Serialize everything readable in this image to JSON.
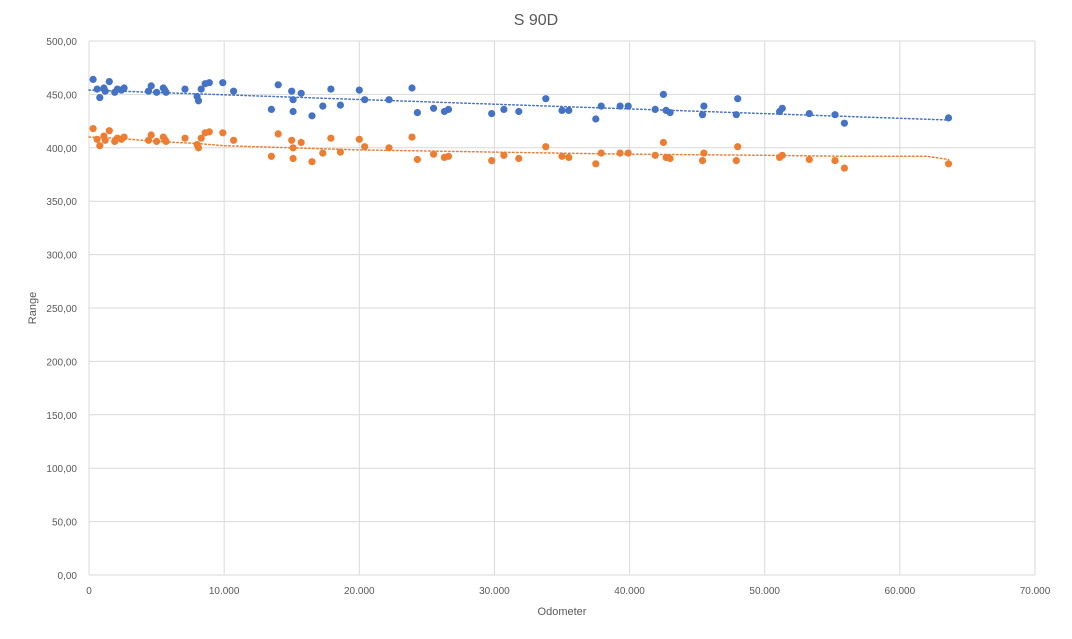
{
  "chart_data": {
    "type": "scatter",
    "title": "S 90D",
    "xlabel": "Odometer",
    "ylabel": "Range",
    "xlim": [
      0,
      70000
    ],
    "ylim": [
      0,
      500
    ],
    "x_ticks": [
      0,
      10000,
      20000,
      30000,
      40000,
      50000,
      60000,
      70000
    ],
    "x_tick_labels": [
      "0",
      "10.000",
      "20.000",
      "30.000",
      "40.000",
      "50.000",
      "60.000",
      "70.000"
    ],
    "y_ticks": [
      0,
      50,
      100,
      150,
      200,
      250,
      300,
      350,
      400,
      450,
      500
    ],
    "y_tick_labels": [
      "0,00",
      "50,00",
      "100,00",
      "150,00",
      "200,00",
      "250,00",
      "300,00",
      "350,00",
      "400,00",
      "450,00",
      "500,00"
    ],
    "grid": true,
    "legend": false,
    "series": [
      {
        "color": "#4472C4",
        "trendline": {
          "type": "linear",
          "x": [
            0,
            63600
          ],
          "y": [
            454,
            426
          ]
        },
        "points": [
          [
            300,
            464
          ],
          [
            600,
            455
          ],
          [
            800,
            447
          ],
          [
            1100,
            456
          ],
          [
            1200,
            453
          ],
          [
            1500,
            462
          ],
          [
            1900,
            452
          ],
          [
            2100,
            455
          ],
          [
            2400,
            454
          ],
          [
            2600,
            456
          ],
          [
            4400,
            453
          ],
          [
            4600,
            458
          ],
          [
            5000,
            452
          ],
          [
            5500,
            456
          ],
          [
            5600,
            454
          ],
          [
            5700,
            452
          ],
          [
            7100,
            455
          ],
          [
            8000,
            448
          ],
          [
            8100,
            444
          ],
          [
            8300,
            455
          ],
          [
            8600,
            460
          ],
          [
            8900,
            461
          ],
          [
            9900,
            461
          ],
          [
            10700,
            453
          ],
          [
            13500,
            436
          ],
          [
            14000,
            459
          ],
          [
            15000,
            453
          ],
          [
            15100,
            434
          ],
          [
            15100,
            445
          ],
          [
            15700,
            451
          ],
          [
            16500,
            430
          ],
          [
            17300,
            439
          ],
          [
            17900,
            455
          ],
          [
            18600,
            440
          ],
          [
            20000,
            454
          ],
          [
            20400,
            445
          ],
          [
            22200,
            445
          ],
          [
            23900,
            456
          ],
          [
            24300,
            433
          ],
          [
            25500,
            437
          ],
          [
            26300,
            434
          ],
          [
            26600,
            436
          ],
          [
            29800,
            432
          ],
          [
            30700,
            436
          ],
          [
            31800,
            434
          ],
          [
            33800,
            446
          ],
          [
            35000,
            435
          ],
          [
            35500,
            435
          ],
          [
            37500,
            427
          ],
          [
            37900,
            439
          ],
          [
            39300,
            439
          ],
          [
            39900,
            439
          ],
          [
            41900,
            436
          ],
          [
            42500,
            450
          ],
          [
            42700,
            435
          ],
          [
            43000,
            433
          ],
          [
            45400,
            431
          ],
          [
            45500,
            439
          ],
          [
            47900,
            431
          ],
          [
            48000,
            446
          ],
          [
            51100,
            434
          ],
          [
            51300,
            437
          ],
          [
            53300,
            432
          ],
          [
            55200,
            431
          ],
          [
            55900,
            423
          ],
          [
            63600,
            428
          ]
        ]
      },
      {
        "color": "#ED7D31",
        "trendline": {
          "type": "moving_average",
          "x": [
            0,
            2000,
            5000,
            8000,
            10000,
            15000,
            20000,
            30000,
            40000,
            50000,
            56000,
            62000,
            63600
          ],
          "y": [
            410,
            409,
            406,
            404,
            402,
            400,
            398,
            396,
            394,
            393,
            392,
            392,
            389
          ]
        },
        "points": [
          [
            300,
            418
          ],
          [
            600,
            408
          ],
          [
            800,
            402
          ],
          [
            1100,
            411
          ],
          [
            1200,
            407
          ],
          [
            1500,
            416
          ],
          [
            1900,
            406
          ],
          [
            2100,
            409
          ],
          [
            2400,
            408
          ],
          [
            2600,
            410
          ],
          [
            4400,
            407
          ],
          [
            4600,
            412
          ],
          [
            5000,
            406
          ],
          [
            5500,
            410
          ],
          [
            5600,
            408
          ],
          [
            5700,
            406
          ],
          [
            7100,
            409
          ],
          [
            8000,
            403
          ],
          [
            8100,
            400
          ],
          [
            8300,
            409
          ],
          [
            8600,
            414
          ],
          [
            8900,
            415
          ],
          [
            9900,
            414
          ],
          [
            10700,
            407
          ],
          [
            13500,
            392
          ],
          [
            14000,
            413
          ],
          [
            15000,
            407
          ],
          [
            15100,
            390
          ],
          [
            15100,
            400
          ],
          [
            15700,
            405
          ],
          [
            16500,
            387
          ],
          [
            17300,
            395
          ],
          [
            17900,
            409
          ],
          [
            18600,
            396
          ],
          [
            20000,
            408
          ],
          [
            20400,
            401
          ],
          [
            22200,
            400
          ],
          [
            23900,
            410
          ],
          [
            24300,
            389
          ],
          [
            25500,
            394
          ],
          [
            26300,
            391
          ],
          [
            26600,
            392
          ],
          [
            29800,
            388
          ],
          [
            30700,
            393
          ],
          [
            31800,
            390
          ],
          [
            33800,
            401
          ],
          [
            35000,
            392
          ],
          [
            35500,
            391
          ],
          [
            37500,
            385
          ],
          [
            37900,
            395
          ],
          [
            39300,
            395
          ],
          [
            39900,
            395
          ],
          [
            41900,
            393
          ],
          [
            42500,
            405
          ],
          [
            42700,
            391
          ],
          [
            43000,
            390
          ],
          [
            45400,
            388
          ],
          [
            45500,
            395
          ],
          [
            47900,
            388
          ],
          [
            48000,
            401
          ],
          [
            51100,
            391
          ],
          [
            51300,
            393
          ],
          [
            53300,
            389
          ],
          [
            55200,
            388
          ],
          [
            55900,
            381
          ],
          [
            63600,
            385
          ]
        ]
      }
    ]
  }
}
